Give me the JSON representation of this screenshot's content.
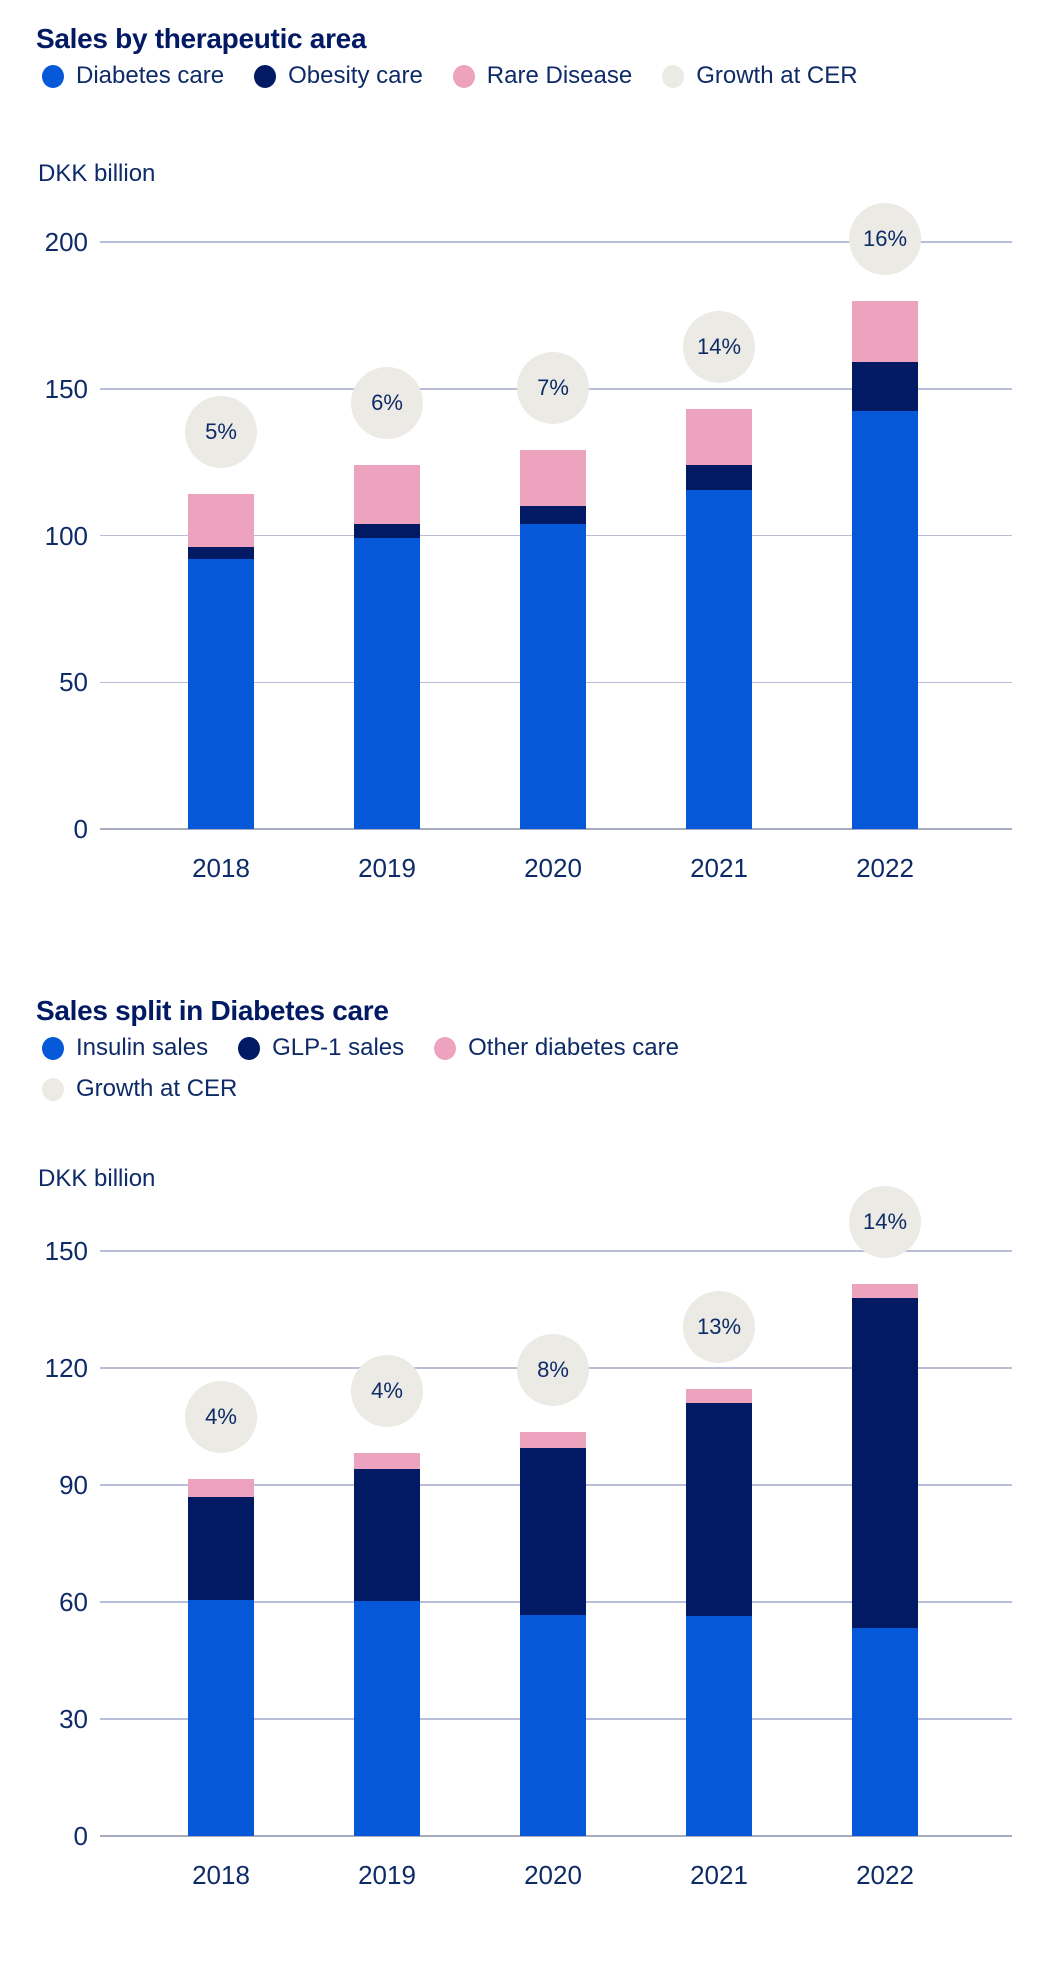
{
  "palette": {
    "blue": "#0558D8",
    "navy": "#021A64",
    "pink": "#EDA2BD",
    "gray": "#ECEAE4",
    "grid_line": "#B8BDD9",
    "axis_line": "#A6ABBF",
    "text": "#0E2B67",
    "title_text": "#021A64",
    "background": "#FFFFFF"
  },
  "chart_data": [
    {
      "type": "bar",
      "stacked": true,
      "title": "Sales by therapeutic area",
      "ylabel": "DKK billion",
      "xlabel": "",
      "categories": [
        "2018",
        "2019",
        "2020",
        "2021",
        "2022"
      ],
      "series": [
        {
          "name": "Diabetes care",
          "color": "blue",
          "values": [
            92,
            99,
            104,
            115.5,
            142.5
          ]
        },
        {
          "name": "Obesity care",
          "color": "navy",
          "values": [
            4,
            5,
            6,
            8.5,
            16.5
          ]
        },
        {
          "name": "Rare Disease",
          "color": "pink",
          "values": [
            18,
            20,
            19,
            19,
            21
          ]
        }
      ],
      "growth_at_cer": {
        "label": "Growth at CER",
        "color": "gray",
        "values": [
          "5%",
          "6%",
          "7%",
          "14%",
          "16%"
        ]
      },
      "legend_rows": [
        [
          {
            "label": "Diabetes care",
            "color": "blue"
          },
          {
            "label": "Obesity care",
            "color": "navy"
          },
          {
            "label": "Rare Disease",
            "color": "pink"
          },
          {
            "label": "Growth at CER",
            "color": "gray"
          }
        ]
      ],
      "ylim": [
        0,
        200
      ],
      "yticks": [
        200,
        150,
        100,
        50,
        0
      ],
      "grid": true,
      "legend_position": "top"
    },
    {
      "type": "bar",
      "stacked": true,
      "title": "Sales split in Diabetes care",
      "ylabel": "DKK billion",
      "xlabel": "",
      "categories": [
        "2018",
        "2019",
        "2020",
        "2021",
        "2022"
      ],
      "series": [
        {
          "name": "Insulin sales",
          "color": "blue",
          "values": [
            60.5,
            60.3,
            56.6,
            56.3,
            53.4
          ]
        },
        {
          "name": "GLP-1 sales",
          "color": "navy",
          "values": [
            26.5,
            33.7,
            43,
            54.7,
            84.6
          ]
        },
        {
          "name": "Other diabetes care",
          "color": "pink",
          "values": [
            4.5,
            4.3,
            4.1,
            3.5,
            3.5
          ]
        }
      ],
      "growth_at_cer": {
        "label": "Growth at CER",
        "color": "gray",
        "values": [
          "4%",
          "4%",
          "8%",
          "13%",
          "14%"
        ]
      },
      "legend_rows": [
        [
          {
            "label": "Insulin sales",
            "color": "blue"
          },
          {
            "label": "GLP-1 sales",
            "color": "navy"
          },
          {
            "label": "Other diabetes care",
            "color": "pink"
          }
        ],
        [
          {
            "label": "Growth at CER",
            "color": "gray"
          }
        ]
      ],
      "ylim": [
        0,
        150
      ],
      "yticks": [
        150,
        120,
        90,
        60,
        30,
        0
      ],
      "grid": true,
      "legend_position": "top"
    }
  ]
}
